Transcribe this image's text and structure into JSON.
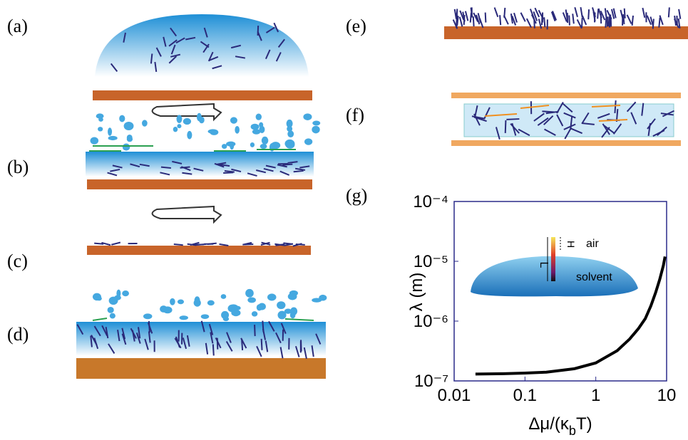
{
  "panel_labels": [
    "(a)",
    "(b)",
    "(c)",
    "(d)",
    "(e)",
    "(f)",
    "(g)"
  ],
  "inset_labels": {
    "air": "air",
    "solvent": "solvent",
    "height": "H",
    "length": "L"
  },
  "chart_data": {
    "type": "line",
    "x_label": [
      "Δμ/(κ",
      "b",
      "T)"
    ],
    "y_label": "λ (m)",
    "xscale": "log",
    "yscale": "log",
    "xlim": [
      0.01,
      10
    ],
    "ylim": [
      1e-07,
      0.0001
    ],
    "xticks": [
      0.01,
      0.1,
      1,
      10
    ],
    "yticks": [
      {
        "value": 1e-07,
        "label": "10⁻⁷"
      },
      {
        "value": 1e-06,
        "label": "10⁻⁶"
      },
      {
        "value": 1e-05,
        "label": "10⁻⁵"
      },
      {
        "value": 0.0001,
        "label": "10⁻⁴"
      }
    ],
    "color": "#000000",
    "x": [
      0.02,
      0.05,
      0.1,
      0.2,
      0.5,
      1,
      2,
      3,
      4,
      5,
      6,
      7,
      8,
      9,
      9.5
    ],
    "values": [
      1.3e-07,
      1.32e-07,
      1.35e-07,
      1.4e-07,
      1.6e-07,
      2e-07,
      3.2e-07,
      5e-07,
      7.5e-07,
      1.1e-06,
      1.8e-06,
      3e-06,
      5e-06,
      8.5e-06,
      1.2e-05
    ]
  }
}
